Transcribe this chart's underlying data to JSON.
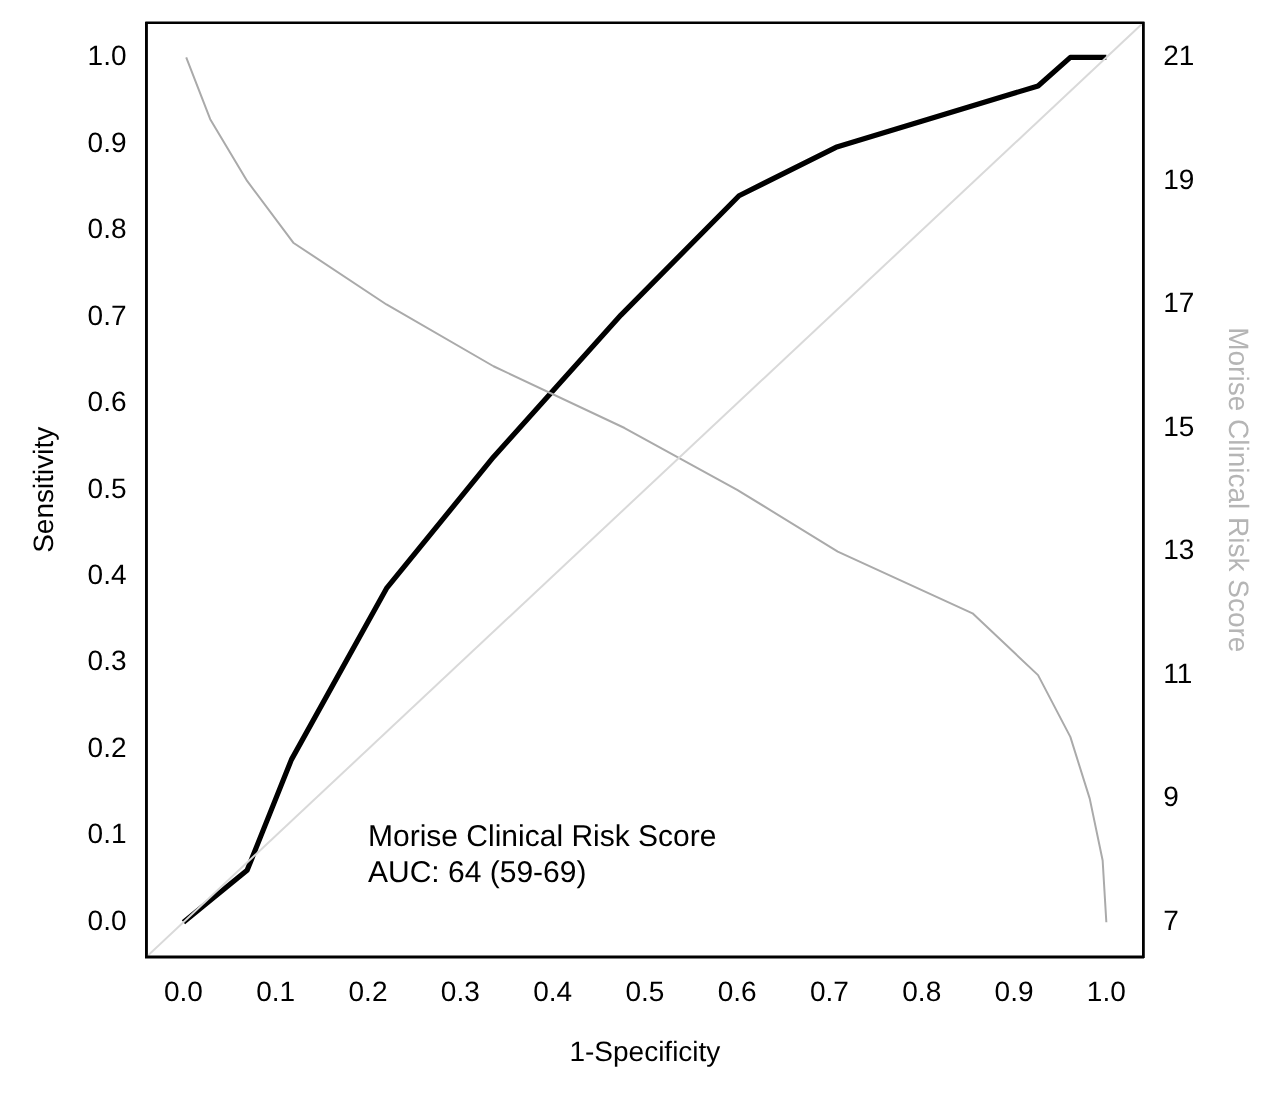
{
  "chart_data": {
    "type": "line",
    "xlabel": "1-Specificity",
    "ylabel": "Sensitivity",
    "y2label": "Morise Clinical Risk Score",
    "annotations": [
      "Morise Clinical Risk Score",
      "AUC: 64 (59-69)"
    ],
    "xlim": [
      -0.04,
      1.04
    ],
    "ylim": [
      -0.04,
      1.04
    ],
    "y2lim": [
      6.44,
      21.56
    ],
    "xticks": [
      {
        "value": 0,
        "label": "0.0"
      },
      0.1,
      0.2,
      0.3,
      0.4,
      0.5,
      0.6,
      0.7,
      0.8,
      0.9,
      {
        "value": 1,
        "label": "1.0"
      }
    ],
    "yticks": [
      {
        "value": 0,
        "label": "0.0"
      },
      0.1,
      0.2,
      0.3,
      0.4,
      0.5,
      0.6,
      0.7,
      0.8,
      0.9,
      {
        "value": 1,
        "label": "1.0"
      }
    ],
    "y2ticks": [
      7,
      9,
      11,
      13,
      15,
      17,
      19,
      21
    ],
    "grid": false,
    "legend": false,
    "marker": "none",
    "line_style": "solid",
    "series": [
      {
        "color": "#d9d9d9",
        "x": [
          -0.04,
          1.04
        ],
        "values": [
          -0.04,
          1.04
        ]
      },
      {
        "color": "#aaaaaa",
        "axis": "y2",
        "x": [
          0.003,
          0.029,
          0.069,
          0.119,
          0.22,
          0.336,
          0.478,
          0.6,
          0.709,
          0.855,
          0.926,
          0.961,
          0.982,
          0.996,
          1.0
        ],
        "values": [
          21,
          20,
          19,
          18,
          17,
          16,
          15,
          14,
          13,
          12,
          11,
          10,
          9,
          8,
          7
        ]
      },
      {
        "color": "#000000",
        "x": [
          0,
          0.069,
          0.117,
          0.22,
          0.336,
          0.474,
          0.602,
          0.707,
          0.926,
          0.961,
          1.0
        ],
        "values": [
          0,
          0.06,
          0.188,
          0.386,
          0.538,
          0.702,
          0.84,
          0.896,
          0.967,
          1.0,
          1.0
        ]
      }
    ]
  }
}
